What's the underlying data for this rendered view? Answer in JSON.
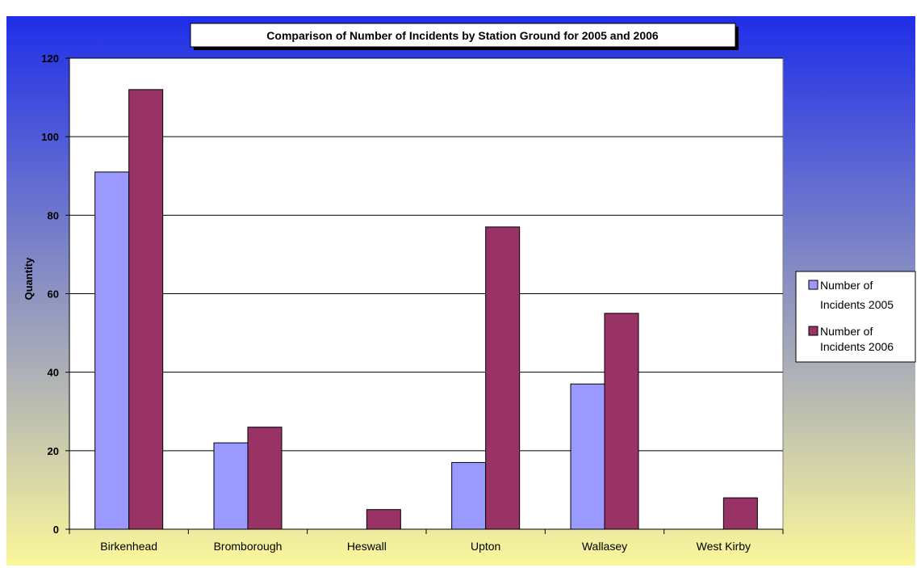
{
  "chart_data": {
    "type": "bar",
    "title": "Comparison of Number of Incidents by Station Ground for 2005 and 2006",
    "xlabel": "",
    "ylabel": "Quantity",
    "categories": [
      "Birkenhead",
      "Bromborough",
      "Heswall",
      "Upton",
      "Wallasey",
      "West Kirby"
    ],
    "series": [
      {
        "name": "Number of Incidents 2005",
        "values": [
          91,
          22,
          0,
          17,
          37,
          0
        ],
        "color": "#9999ff"
      },
      {
        "name": "Number of Incidents 2006",
        "values": [
          112,
          26,
          5,
          77,
          55,
          8
        ],
        "color": "#993366"
      }
    ],
    "ylim": [
      0,
      120
    ],
    "yticks": [
      0,
      20,
      40,
      60,
      80,
      100,
      120
    ],
    "grid": true,
    "legend": "right",
    "colors": {
      "background_top": "#1f2ee8",
      "background_bottom": "#fbf79b",
      "plot_area": "#ffffff"
    }
  }
}
